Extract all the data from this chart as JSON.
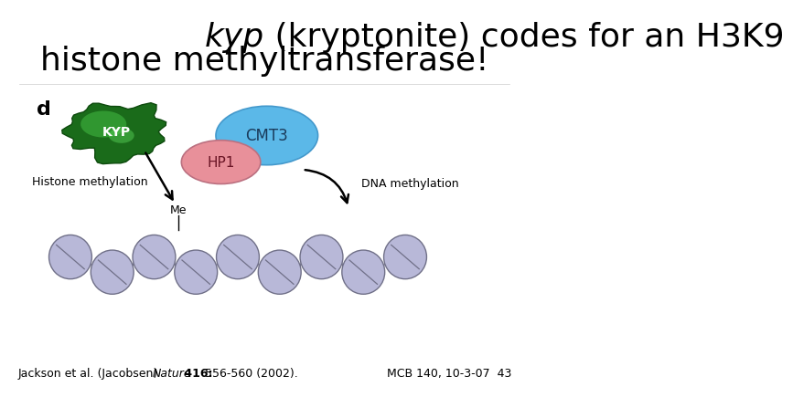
{
  "title_italic": "kyp",
  "title_rest": " (kryptonite) codes for an H3K9",
  "title_line2": "histone methyltransferase!",
  "title_fontsize": 26,
  "citation_left": "Jackson et al. (Jacobsen) ",
  "citation_italic": "Nature",
  "citation_bold": " 416:",
  "citation_rest": " 556-560 (2002).",
  "citation_right": "MCB 140, 10-3-07  43",
  "citation_fontsize": 9,
  "bg_color": "#ffffff",
  "panel_label": "d",
  "kyp_label": "KYP",
  "cmt3_label": "CMT3",
  "hp1_label": "HP1",
  "me_label": "Me",
  "histone_label": "Histone methylation",
  "dna_label": "DNA methylation",
  "cmt3_color": "#5bb8e8",
  "hp1_color": "#e8909a",
  "nucleosome_color": "#b8b8d8",
  "nucleosome_edge": "#707088"
}
